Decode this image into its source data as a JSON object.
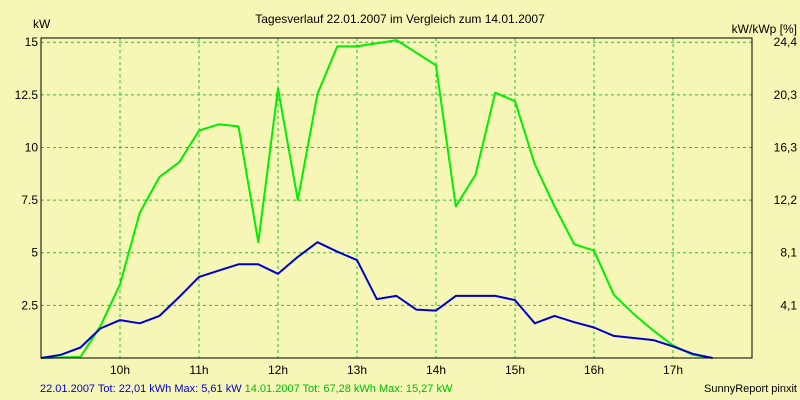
{
  "chart_data": {
    "type": "line",
    "title": "Tagesverlauf 22.01.2007 im Vergleich zum 14.01.2007",
    "ylabel_left": "kW",
    "ylabel_right": "kW/kWp [%]",
    "x_ticks": [
      {
        "t": 10,
        "label": "10h"
      },
      {
        "t": 11,
        "label": "11h"
      },
      {
        "t": 12,
        "label": "12h"
      },
      {
        "t": 13,
        "label": "13h"
      },
      {
        "t": 14,
        "label": "14h"
      },
      {
        "t": 15,
        "label": "15h"
      },
      {
        "t": 16,
        "label": "16h"
      },
      {
        "t": 17,
        "label": "17h"
      }
    ],
    "xlim": [
      9.0,
      18.0
    ],
    "ylim": [
      0,
      15.2
    ],
    "y_ticks_left": [
      {
        "v": 2.5,
        "label": "2.5"
      },
      {
        "v": 5,
        "label": "5"
      },
      {
        "v": 7.5,
        "label": "7.5"
      },
      {
        "v": 10,
        "label": "10"
      },
      {
        "v": 12.5,
        "label": "12.5"
      },
      {
        "v": 15,
        "label": "15"
      }
    ],
    "y_ticks_right": [
      {
        "v": 2.5,
        "label": "4,1"
      },
      {
        "v": 5,
        "label": "8,1"
      },
      {
        "v": 7.5,
        "label": "12,2"
      },
      {
        "v": 10,
        "label": "16,3"
      },
      {
        "v": 12.5,
        "label": "20,3"
      },
      {
        "v": 15,
        "label": "24,4"
      }
    ],
    "grid": true,
    "series": [
      {
        "name": "22.01.2007",
        "color": "#0000cc",
        "points": [
          [
            9.0,
            0.0
          ],
          [
            9.25,
            0.15
          ],
          [
            9.5,
            0.5
          ],
          [
            9.75,
            1.4
          ],
          [
            10.0,
            1.8
          ],
          [
            10.25,
            1.65
          ],
          [
            10.5,
            2.0
          ],
          [
            10.75,
            2.9
          ],
          [
            11.0,
            3.85
          ],
          [
            11.25,
            4.15
          ],
          [
            11.5,
            4.45
          ],
          [
            11.75,
            4.45
          ],
          [
            12.0,
            4.0
          ],
          [
            12.25,
            4.8
          ],
          [
            12.5,
            5.5
          ],
          [
            12.75,
            5.05
          ],
          [
            13.0,
            4.65
          ],
          [
            13.25,
            2.8
          ],
          [
            13.5,
            2.95
          ],
          [
            13.75,
            2.3
          ],
          [
            14.0,
            2.25
          ],
          [
            14.25,
            2.95
          ],
          [
            14.5,
            2.95
          ],
          [
            14.75,
            2.95
          ],
          [
            15.0,
            2.75
          ],
          [
            15.25,
            1.65
          ],
          [
            15.5,
            2.0
          ],
          [
            15.75,
            1.7
          ],
          [
            16.0,
            1.45
          ],
          [
            16.25,
            1.05
          ],
          [
            16.5,
            0.95
          ],
          [
            16.75,
            0.85
          ],
          [
            17.0,
            0.55
          ],
          [
            17.25,
            0.2
          ],
          [
            17.5,
            0.0
          ]
        ]
      },
      {
        "name": "14.01.2007",
        "color": "#00ee00",
        "points": [
          [
            9.0,
            0.0
          ],
          [
            9.5,
            0.05
          ],
          [
            9.75,
            1.5
          ],
          [
            10.0,
            3.5
          ],
          [
            10.25,
            6.9
          ],
          [
            10.5,
            8.6
          ],
          [
            10.75,
            9.3
          ],
          [
            11.0,
            10.8
          ],
          [
            11.25,
            11.1
          ],
          [
            11.5,
            11.0
          ],
          [
            11.75,
            5.5
          ],
          [
            12.0,
            12.8
          ],
          [
            12.25,
            7.5
          ],
          [
            12.5,
            12.55
          ],
          [
            12.75,
            14.8
          ],
          [
            13.0,
            14.8
          ],
          [
            13.25,
            14.95
          ],
          [
            13.5,
            15.1
          ],
          [
            13.75,
            14.5
          ],
          [
            14.0,
            13.9
          ],
          [
            14.25,
            7.2
          ],
          [
            14.5,
            8.7
          ],
          [
            14.75,
            12.6
          ],
          [
            15.0,
            12.2
          ],
          [
            15.25,
            9.2
          ],
          [
            15.5,
            7.2
          ],
          [
            15.75,
            5.4
          ],
          [
            16.0,
            5.1
          ],
          [
            16.25,
            3.0
          ],
          [
            16.5,
            2.1
          ],
          [
            16.75,
            1.3
          ],
          [
            17.0,
            0.6
          ],
          [
            17.25,
            0.15
          ],
          [
            17.5,
            0.0
          ]
        ]
      }
    ]
  },
  "footer": {
    "series1_text": "22.01.2007 Tot: 22,01 kWh Max: 5,61 kW",
    "series2_text": "14.01.2007 Tot: 67,28 kWh Max: 15,27 kW",
    "series1_color": "#0000cc",
    "series2_color": "#00bb00",
    "credit": "SunnyReport pinxit"
  }
}
